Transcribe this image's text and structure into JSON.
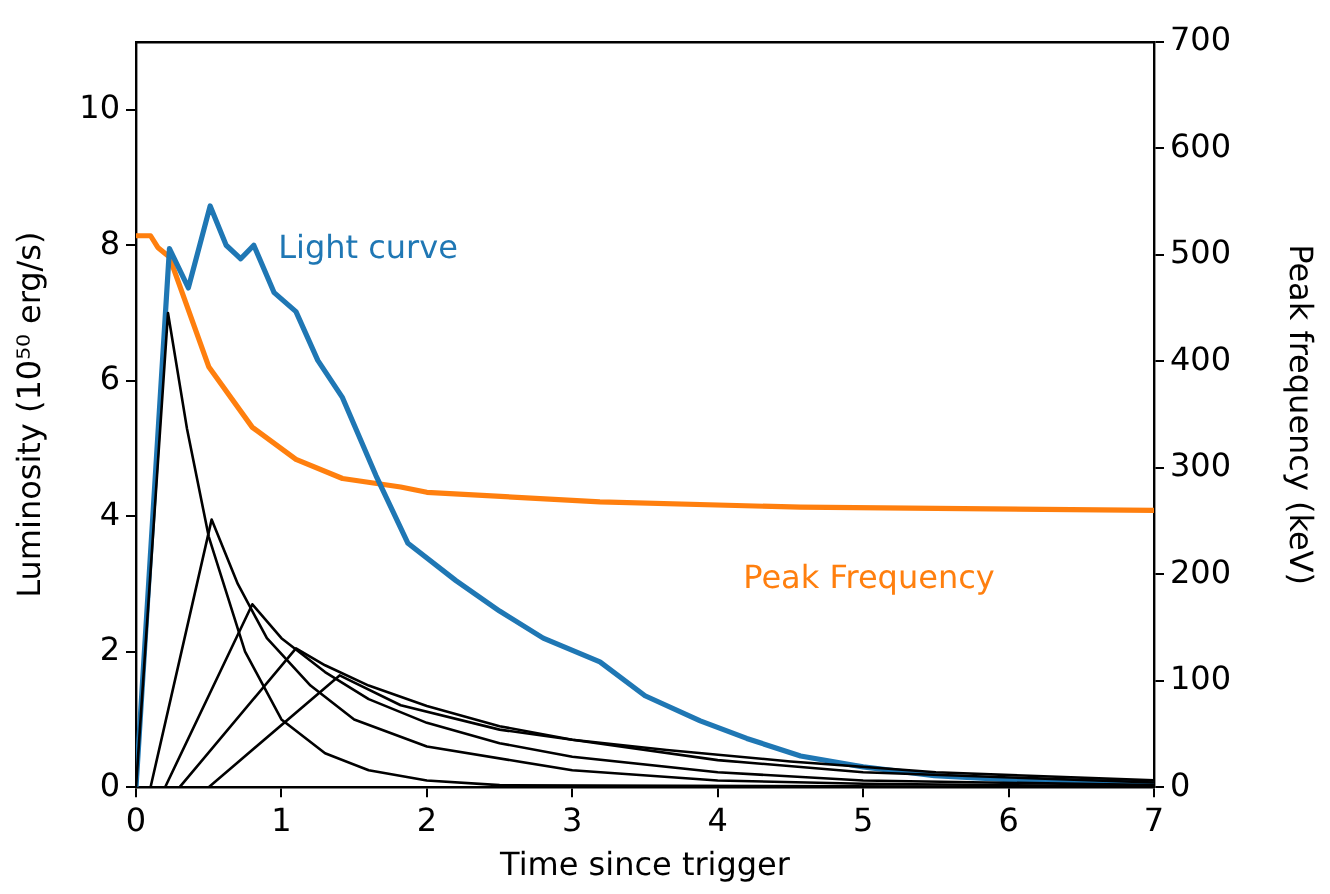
{
  "chart_data": {
    "type": "line",
    "xlabel": "Time since trigger",
    "ylabel": "Luminosity (10⁵⁰ erg/s)",
    "y2label": "Peak frequency (keV)",
    "xlim": [
      0,
      7
    ],
    "xticks": [
      0,
      1,
      2,
      3,
      4,
      5,
      6,
      7
    ],
    "ylim": [
      0,
      11
    ],
    "yticks": [
      0,
      2,
      4,
      6,
      8,
      10
    ],
    "y2lim": [
      0,
      700
    ],
    "y2ticks": [
      0,
      100,
      200,
      300,
      400,
      500,
      600,
      700
    ],
    "grid": false,
    "legend": false,
    "marker": "none",
    "line_style": "solid",
    "series": [
      {
        "color": "#000000",
        "x": [
          0,
          0.22,
          0.35,
          0.5,
          0.75,
          1.0,
          1.3,
          1.6,
          2.0,
          2.5,
          7
        ],
        "values": [
          0,
          7.0,
          5.3,
          3.7,
          2.0,
          1.0,
          0.5,
          0.25,
          0.1,
          0.03,
          0
        ]
      },
      {
        "color": "#000000",
        "x": [
          0.1,
          0.52,
          0.7,
          0.9,
          1.2,
          1.5,
          2,
          3,
          4,
          5,
          7
        ],
        "values": [
          0,
          3.95,
          3.0,
          2.2,
          1.5,
          1.0,
          0.6,
          0.25,
          0.1,
          0.05,
          0.01
        ]
      },
      {
        "color": "#000000",
        "x": [
          0.2,
          0.8,
          1.0,
          1.3,
          1.6,
          2,
          2.5,
          3,
          4,
          5,
          7
        ],
        "values": [
          0,
          2.7,
          2.2,
          1.7,
          1.3,
          0.95,
          0.65,
          0.45,
          0.22,
          0.1,
          0.03
        ]
      },
      {
        "color": "#000000",
        "x": [
          0.3,
          1.1,
          1.3,
          1.6,
          2,
          2.5,
          3,
          4,
          5,
          7
        ],
        "values": [
          0,
          2.05,
          1.8,
          1.5,
          1.2,
          0.9,
          0.7,
          0.4,
          0.22,
          0.07
        ]
      },
      {
        "color": "#000000",
        "x": [
          0.5,
          1.4,
          1.82,
          2.5,
          3,
          3.65,
          4.5,
          5.5,
          7
        ],
        "values": [
          0,
          1.65,
          1.21,
          0.85,
          0.7,
          0.55,
          0.38,
          0.22,
          0.1
        ]
      },
      {
        "name": "Light curve",
        "color": "#1f77b4",
        "x": [
          0,
          0.23,
          0.36,
          0.51,
          0.62,
          0.72,
          0.81,
          0.95,
          1.1,
          1.25,
          1.42,
          1.65,
          1.87,
          2.2,
          2.5,
          2.8,
          3.19,
          3.5,
          3.88,
          4.2,
          4.57,
          5.0,
          5.49,
          6.0,
          7
        ],
        "values": [
          0,
          7.95,
          7.37,
          8.58,
          8.0,
          7.8,
          8.0,
          7.3,
          7.02,
          6.3,
          5.75,
          4.6,
          3.6,
          3.05,
          2.6,
          2.2,
          1.85,
          1.35,
          0.98,
          0.72,
          0.46,
          0.3,
          0.17,
          0.11,
          0.06
        ]
      },
      {
        "name": "Peak Frequency",
        "color": "#ff7f0e",
        "axis": "y2",
        "x": [
          0,
          0.1,
          0.15,
          0.23,
          0.5,
          0.8,
          1.1,
          1.42,
          1.82,
          2.0,
          3.19,
          4.57,
          7
        ],
        "values": [
          518,
          518,
          507,
          498,
          395,
          338,
          308,
          290,
          282,
          277,
          268,
          263,
          260
        ]
      }
    ]
  }
}
